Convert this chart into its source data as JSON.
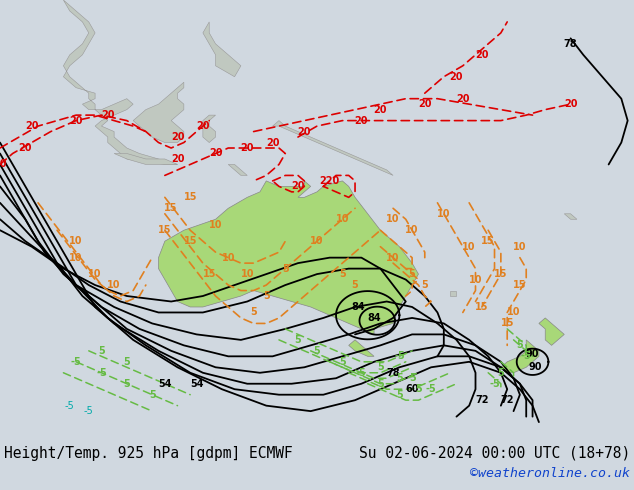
{
  "title_left": "Height/Temp. 925 hPa [gdpm] ECMWF",
  "title_right": "Su 02-06-2024 00:00 UTC (18+78)",
  "credit": "©weatheronline.co.uk",
  "ocean_color": "#d0d8e0",
  "land_gray_color": "#c0c8c0",
  "australia_color": "#a8d878",
  "nz_color": "#a8d878",
  "indo_color": "#a8d878",
  "png_color": "#a8d878",
  "title_fontsize": 10.5,
  "credit_color": "#1144cc",
  "figsize": [
    6.34,
    4.9
  ],
  "dpi": 100,
  "black_color": "#000000",
  "orange_color": "#e08020",
  "red_color": "#dd0000",
  "green_color": "#66bb44",
  "cyan_color": "#00aaaa",
  "lat_min": -58,
  "lat_max": 22,
  "lon_min": 88,
  "lon_max": 188
}
